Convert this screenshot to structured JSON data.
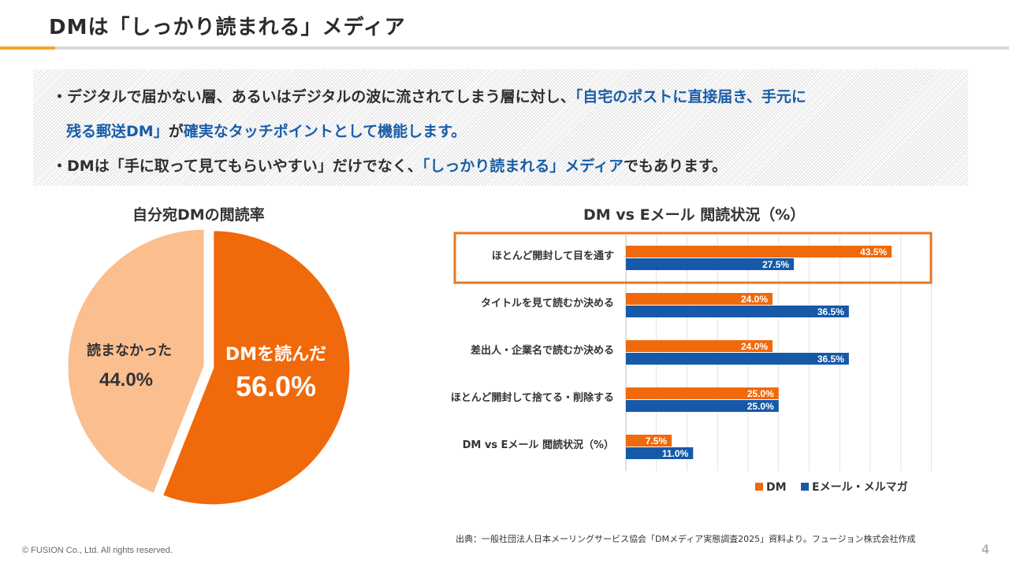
{
  "header": {
    "title": "DMは「しっかり読まれる」メディア"
  },
  "summary": {
    "line1_bullet": "・",
    "line1_a": "デジタルで届かない層、あるいはデジタルの波に流されてしまう層に対し、",
    "line1_b": "「自宅のポストに直接届き、手元に",
    "line2_a": "残る郵送DM」",
    "line2_b": "が",
    "line2_c": "確実なタッチポイントとして機能します。",
    "line3_bullet": "・",
    "line3_a": "DMは「手に取って見てもらいやすい」だけでなく、",
    "line3_b": "「しっかり読まれる」メディア",
    "line3_c": "でもあります。"
  },
  "colors": {
    "dm": "#f0690a",
    "email": "#1559a8",
    "pie_light": "#fbbe8f",
    "highlight_box": "#e87722"
  },
  "chart_data": [
    {
      "type": "pie",
      "title": "自分宛DMの閲読率",
      "slices": [
        {
          "label": "DMを読んだ",
          "value": 56.0,
          "value_label": "56.0%"
        },
        {
          "label": "読まなかった",
          "value": 44.0,
          "value_label": "44.0%"
        }
      ]
    },
    {
      "type": "bar",
      "orientation": "horizontal",
      "title": "DM vs Eメール 閲読状況（%）",
      "categories": [
        "ほとんど開封して目を通す",
        "タイトルを見て読むか決める",
        "差出人・企業名で読むか決める",
        "ほとんど開封して捨てる・削除する",
        "DM vs Eメール 閲読状況（%）"
      ],
      "series": [
        {
          "name": "DM",
          "values": [
            43.5,
            24.0,
            24.0,
            25.0,
            7.5
          ],
          "labels": [
            "43.5%",
            "24.0%",
            "24.0%",
            "25.0%",
            "7.5%"
          ]
        },
        {
          "name": "Eメール・メルマガ",
          "values": [
            27.5,
            36.5,
            36.5,
            25.0,
            11.0
          ],
          "labels": [
            "27.5%",
            "36.5%",
            "36.5%",
            "25.0%",
            "11.0%"
          ]
        }
      ],
      "xlim": [
        0,
        50
      ],
      "grid": true,
      "legend": "bottom",
      "highlighted_category": "ほとんど開封して目を通す"
    }
  ],
  "footer": {
    "source": "出典：一般社団法人日本メーリングサービス協会「DMメディア実態調査2025」資料より。フュージョン株式会社作成",
    "copyright": "© FUSION Co., Ltd. All rights reserved.",
    "page": "4"
  }
}
